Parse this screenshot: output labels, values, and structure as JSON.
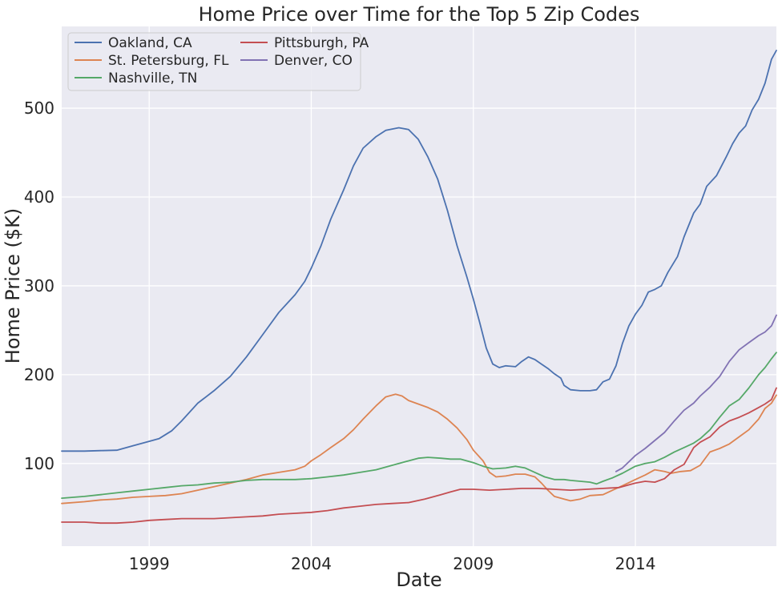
{
  "chart_data": {
    "type": "line",
    "title": "Home Price over Time for the Top 5 Zip Codes",
    "xlabel": "Date",
    "ylabel": "Home Price ($K)",
    "xlim": [
      1996.3,
      2018.35
    ],
    "ylim": [
      7,
      592
    ],
    "x_ticks": [
      1999,
      2004,
      2009,
      2014
    ],
    "x_tick_labels": [
      "1999",
      "2004",
      "2009",
      "2014"
    ],
    "y_ticks": [
      100,
      200,
      300,
      400,
      500
    ],
    "y_tick_labels": [
      "100",
      "200",
      "300",
      "400",
      "500"
    ],
    "grid": true,
    "legend_position": "top-left",
    "legend_columns": 2,
    "series": [
      {
        "name": "Oakland, CA",
        "color": "#4c72b0",
        "points": [
          [
            1996.3,
            114
          ],
          [
            1997.0,
            114
          ],
          [
            1997.5,
            114.5
          ],
          [
            1998.0,
            115
          ],
          [
            1998.5,
            120
          ],
          [
            1999.0,
            125
          ],
          [
            1999.3,
            128
          ],
          [
            1999.7,
            137
          ],
          [
            2000.0,
            148
          ],
          [
            2000.5,
            168
          ],
          [
            2001.0,
            182
          ],
          [
            2001.5,
            198
          ],
          [
            2002.0,
            220
          ],
          [
            2002.5,
            245
          ],
          [
            2003.0,
            270
          ],
          [
            2003.5,
            290
          ],
          [
            2003.8,
            305
          ],
          [
            2004.0,
            320
          ],
          [
            2004.3,
            345
          ],
          [
            2004.6,
            375
          ],
          [
            2005.0,
            408
          ],
          [
            2005.3,
            435
          ],
          [
            2005.6,
            455
          ],
          [
            2006.0,
            468
          ],
          [
            2006.3,
            475
          ],
          [
            2006.7,
            478
          ],
          [
            2007.0,
            476
          ],
          [
            2007.3,
            465
          ],
          [
            2007.6,
            445
          ],
          [
            2007.9,
            420
          ],
          [
            2008.2,
            385
          ],
          [
            2008.5,
            345
          ],
          [
            2008.8,
            310
          ],
          [
            2009.0,
            285
          ],
          [
            2009.2,
            258
          ],
          [
            2009.4,
            230
          ],
          [
            2009.6,
            212
          ],
          [
            2009.8,
            208
          ],
          [
            2010.0,
            210
          ],
          [
            2010.3,
            209
          ],
          [
            2010.5,
            215
          ],
          [
            2010.7,
            220
          ],
          [
            2010.9,
            217
          ],
          [
            2011.1,
            212
          ],
          [
            2011.3,
            207
          ],
          [
            2011.5,
            201
          ],
          [
            2011.7,
            196
          ],
          [
            2011.8,
            188
          ],
          [
            2012.0,
            183
          ],
          [
            2012.3,
            182
          ],
          [
            2012.6,
            182
          ],
          [
            2012.8,
            183
          ],
          [
            2013.0,
            192
          ],
          [
            2013.2,
            195
          ],
          [
            2013.4,
            210
          ],
          [
            2013.6,
            235
          ],
          [
            2013.8,
            255
          ],
          [
            2014.0,
            268
          ],
          [
            2014.2,
            278
          ],
          [
            2014.4,
            293
          ],
          [
            2014.6,
            296
          ],
          [
            2014.8,
            300
          ],
          [
            2015.0,
            315
          ],
          [
            2015.3,
            333
          ],
          [
            2015.5,
            355
          ],
          [
            2015.8,
            382
          ],
          [
            2016.0,
            392
          ],
          [
            2016.2,
            412
          ],
          [
            2016.5,
            424
          ],
          [
            2016.8,
            445
          ],
          [
            2017.0,
            460
          ],
          [
            2017.2,
            472
          ],
          [
            2017.4,
            480
          ],
          [
            2017.6,
            498
          ],
          [
            2017.8,
            510
          ],
          [
            2018.0,
            528
          ],
          [
            2018.2,
            555
          ],
          [
            2018.35,
            565
          ]
        ]
      },
      {
        "name": "St. Petersburg, FL",
        "color": "#dd8452",
        "points": [
          [
            1996.3,
            55
          ],
          [
            1997.0,
            57
          ],
          [
            1997.5,
            59
          ],
          [
            1998.0,
            60
          ],
          [
            1998.5,
            62
          ],
          [
            1999.0,
            63
          ],
          [
            1999.5,
            64
          ],
          [
            2000.0,
            66
          ],
          [
            2000.5,
            70
          ],
          [
            2001.0,
            74
          ],
          [
            2001.5,
            78
          ],
          [
            2002.0,
            82
          ],
          [
            2002.5,
            87
          ],
          [
            2003.0,
            90
          ],
          [
            2003.5,
            93
          ],
          [
            2003.8,
            97
          ],
          [
            2004.0,
            103
          ],
          [
            2004.3,
            110
          ],
          [
            2004.6,
            118
          ],
          [
            2005.0,
            128
          ],
          [
            2005.3,
            138
          ],
          [
            2005.6,
            150
          ],
          [
            2006.0,
            165
          ],
          [
            2006.3,
            175
          ],
          [
            2006.6,
            178
          ],
          [
            2006.8,
            176
          ],
          [
            2007.0,
            171
          ],
          [
            2007.3,
            167
          ],
          [
            2007.6,
            163
          ],
          [
            2007.9,
            158
          ],
          [
            2008.2,
            150
          ],
          [
            2008.5,
            140
          ],
          [
            2008.8,
            127
          ],
          [
            2009.0,
            115
          ],
          [
            2009.3,
            103
          ],
          [
            2009.5,
            90
          ],
          [
            2009.7,
            85
          ],
          [
            2010.0,
            86
          ],
          [
            2010.3,
            88
          ],
          [
            2010.6,
            88
          ],
          [
            2010.9,
            85
          ],
          [
            2011.1,
            78
          ],
          [
            2011.3,
            70
          ],
          [
            2011.5,
            63
          ],
          [
            2011.8,
            60
          ],
          [
            2012.0,
            58
          ],
          [
            2012.3,
            60
          ],
          [
            2012.6,
            64
          ],
          [
            2013.0,
            65
          ],
          [
            2013.3,
            70
          ],
          [
            2013.6,
            75
          ],
          [
            2014.0,
            82
          ],
          [
            2014.3,
            87
          ],
          [
            2014.6,
            93
          ],
          [
            2014.9,
            91
          ],
          [
            2015.1,
            89
          ],
          [
            2015.4,
            91
          ],
          [
            2015.7,
            92
          ],
          [
            2016.0,
            98
          ],
          [
            2016.3,
            113
          ],
          [
            2016.6,
            117
          ],
          [
            2016.9,
            122
          ],
          [
            2017.2,
            130
          ],
          [
            2017.5,
            138
          ],
          [
            2017.8,
            150
          ],
          [
            2018.0,
            162
          ],
          [
            2018.2,
            168
          ],
          [
            2018.35,
            177
          ]
        ]
      },
      {
        "name": "Nashville, TN",
        "color": "#55a868",
        "points": [
          [
            1996.3,
            61
          ],
          [
            1997.0,
            63
          ],
          [
            1997.5,
            65
          ],
          [
            1998.0,
            67
          ],
          [
            1998.5,
            69
          ],
          [
            1999.0,
            71
          ],
          [
            1999.5,
            73
          ],
          [
            2000.0,
            75
          ],
          [
            2000.5,
            76
          ],
          [
            2001.0,
            78
          ],
          [
            2001.5,
            79
          ],
          [
            2002.0,
            81
          ],
          [
            2002.5,
            82
          ],
          [
            2003.0,
            82
          ],
          [
            2003.5,
            82
          ],
          [
            2004.0,
            83
          ],
          [
            2004.5,
            85
          ],
          [
            2005.0,
            87
          ],
          [
            2005.5,
            90
          ],
          [
            2006.0,
            93
          ],
          [
            2006.5,
            98
          ],
          [
            2007.0,
            103
          ],
          [
            2007.3,
            106
          ],
          [
            2007.6,
            107
          ],
          [
            2008.0,
            106
          ],
          [
            2008.3,
            105
          ],
          [
            2008.6,
            105
          ],
          [
            2009.0,
            101
          ],
          [
            2009.3,
            97
          ],
          [
            2009.6,
            94
          ],
          [
            2010.0,
            95
          ],
          [
            2010.3,
            97
          ],
          [
            2010.6,
            95
          ],
          [
            2010.9,
            90
          ],
          [
            2011.2,
            85
          ],
          [
            2011.5,
            82
          ],
          [
            2011.8,
            82
          ],
          [
            2012.0,
            81
          ],
          [
            2012.3,
            80
          ],
          [
            2012.6,
            79
          ],
          [
            2012.8,
            77
          ],
          [
            2013.0,
            80
          ],
          [
            2013.3,
            84
          ],
          [
            2013.6,
            89
          ],
          [
            2014.0,
            97
          ],
          [
            2014.3,
            100
          ],
          [
            2014.6,
            102
          ],
          [
            2014.9,
            107
          ],
          [
            2015.2,
            113
          ],
          [
            2015.5,
            118
          ],
          [
            2015.8,
            123
          ],
          [
            2016.0,
            128
          ],
          [
            2016.3,
            138
          ],
          [
            2016.6,
            152
          ],
          [
            2016.9,
            165
          ],
          [
            2017.2,
            172
          ],
          [
            2017.5,
            185
          ],
          [
            2017.8,
            200
          ],
          [
            2018.0,
            208
          ],
          [
            2018.2,
            218
          ],
          [
            2018.35,
            225
          ]
        ]
      },
      {
        "name": "Pittsburgh, PA",
        "color": "#c44e52",
        "points": [
          [
            1996.3,
            34
          ],
          [
            1997.0,
            34
          ],
          [
            1997.5,
            33
          ],
          [
            1998.0,
            33
          ],
          [
            1998.5,
            34
          ],
          [
            1999.0,
            36
          ],
          [
            1999.5,
            37
          ],
          [
            2000.0,
            38
          ],
          [
            2000.5,
            38
          ],
          [
            2001.0,
            38
          ],
          [
            2001.5,
            39
          ],
          [
            2002.0,
            40
          ],
          [
            2002.5,
            41
          ],
          [
            2003.0,
            43
          ],
          [
            2003.5,
            44
          ],
          [
            2004.0,
            45
          ],
          [
            2004.5,
            47
          ],
          [
            2005.0,
            50
          ],
          [
            2005.5,
            52
          ],
          [
            2006.0,
            54
          ],
          [
            2006.5,
            55
          ],
          [
            2007.0,
            56
          ],
          [
            2007.5,
            60
          ],
          [
            2008.0,
            65
          ],
          [
            2008.3,
            68
          ],
          [
            2008.6,
            71
          ],
          [
            2009.0,
            71
          ],
          [
            2009.5,
            70
          ],
          [
            2010.0,
            71
          ],
          [
            2010.5,
            72
          ],
          [
            2011.0,
            72
          ],
          [
            2011.5,
            71
          ],
          [
            2012.0,
            70
          ],
          [
            2012.5,
            71
          ],
          [
            2013.0,
            72
          ],
          [
            2013.5,
            73
          ],
          [
            2014.0,
            78
          ],
          [
            2014.3,
            80
          ],
          [
            2014.6,
            79
          ],
          [
            2014.9,
            83
          ],
          [
            2015.2,
            93
          ],
          [
            2015.5,
            99
          ],
          [
            2015.8,
            118
          ],
          [
            2016.0,
            124
          ],
          [
            2016.3,
            130
          ],
          [
            2016.6,
            141
          ],
          [
            2016.9,
            148
          ],
          [
            2017.2,
            152
          ],
          [
            2017.5,
            157
          ],
          [
            2017.8,
            163
          ],
          [
            2018.0,
            167
          ],
          [
            2018.2,
            172
          ],
          [
            2018.35,
            185
          ]
        ]
      },
      {
        "name": "Denver, CO",
        "color": "#8172b3",
        "points": [
          [
            2013.4,
            91
          ],
          [
            2013.6,
            95
          ],
          [
            2013.8,
            102
          ],
          [
            2014.0,
            109
          ],
          [
            2014.3,
            117
          ],
          [
            2014.6,
            126
          ],
          [
            2014.9,
            135
          ],
          [
            2015.2,
            148
          ],
          [
            2015.5,
            160
          ],
          [
            2015.8,
            168
          ],
          [
            2016.0,
            176
          ],
          [
            2016.3,
            186
          ],
          [
            2016.6,
            198
          ],
          [
            2016.9,
            215
          ],
          [
            2017.2,
            228
          ],
          [
            2017.5,
            236
          ],
          [
            2017.8,
            244
          ],
          [
            2018.0,
            248
          ],
          [
            2018.2,
            255
          ],
          [
            2018.35,
            267
          ]
        ]
      }
    ]
  }
}
